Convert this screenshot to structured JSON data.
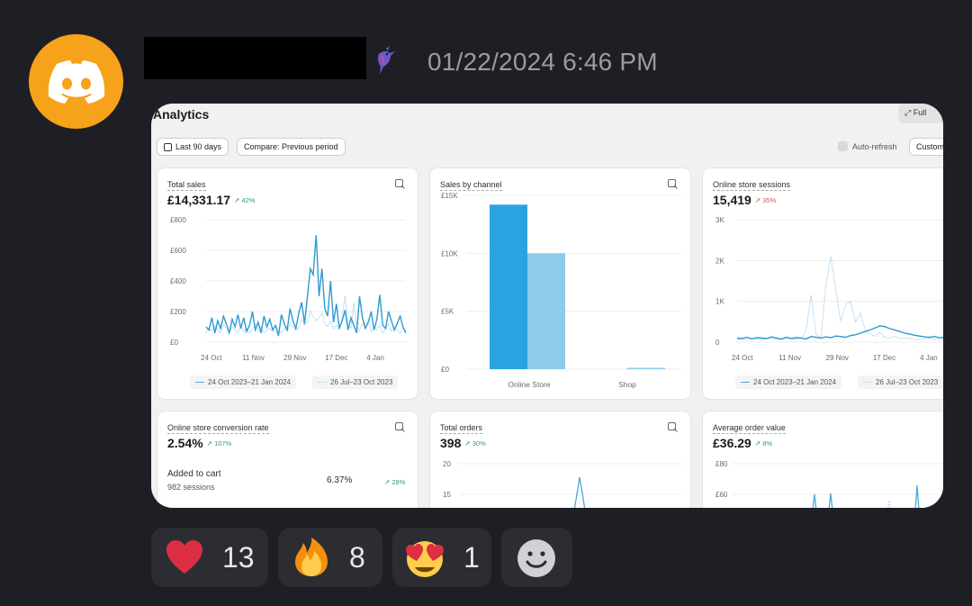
{
  "message": {
    "timestamp": "01/22/2024 6:46 PM",
    "avatar_icon": "discord-icon",
    "avatar_color": "#f7a21b"
  },
  "screenshot": {
    "title": "Analytics",
    "full_btn": "Full",
    "date_filter": "Last 90 days",
    "compare": "Compare: Previous period",
    "auto_refresh": "Auto-refresh",
    "customize": "Custom",
    "cards": {
      "total_sales": {
        "title": "Total sales",
        "value": "£14,331.17",
        "delta": "42%",
        "y_ticks": [
          "£800",
          "£600",
          "£400",
          "£200",
          "£0"
        ],
        "x_ticks": [
          "24 Oct",
          "11 Nov",
          "29 Nov",
          "17 Dec",
          "4 Jan"
        ],
        "legend_current": "24 Oct 2023–21 Jan 2024",
        "legend_previous": "26 Jul–23 Oct 2023"
      },
      "sales_by_channel": {
        "title": "Sales by channel",
        "y_ticks": [
          "£15K",
          "£10K",
          "£5K",
          "£0"
        ],
        "categories": [
          "Online Store",
          "Shop"
        ]
      },
      "sessions": {
        "title": "Online store sessions",
        "value": "15,419",
        "delta": "35%",
        "y_ticks": [
          "3K",
          "2K",
          "1K",
          "0"
        ],
        "x_ticks": [
          "24 Oct",
          "11 Nov",
          "29 Nov",
          "17 Dec",
          "4 Jan"
        ],
        "legend_current": "24 Oct 2023–21 Jan 2024",
        "legend_previous": "26 Jul–23 Oct 2023"
      },
      "conversion": {
        "title": "Online store conversion rate",
        "value": "2.54%",
        "delta": "107%",
        "row_label": "Added to cart",
        "row_sub": "982 sessions",
        "row_value": "6.37%",
        "row_delta": "28%"
      },
      "orders": {
        "title": "Total orders",
        "value": "398",
        "delta": "30%",
        "y_ticks": [
          "20",
          "15"
        ]
      },
      "aov": {
        "title": "Average order value",
        "value": "£36.29",
        "delta": "8%",
        "y_ticks": [
          "£80",
          "£60"
        ]
      }
    }
  },
  "chart_data": [
    {
      "type": "line",
      "title": "Total sales",
      "x_ticks": [
        "24 Oct",
        "11 Nov",
        "29 Nov",
        "17 Dec",
        "4 Jan"
      ],
      "ylim": [
        0,
        800
      ],
      "series": [
        {
          "name": "24 Oct 2023–21 Jan 2024",
          "values": [
            100,
            80,
            160,
            60,
            140,
            90,
            170,
            120,
            60,
            150,
            100,
            180,
            90,
            160,
            70,
            110,
            200,
            80,
            130,
            60,
            170,
            100,
            150,
            80,
            110,
            40,
            180,
            120,
            80,
            220,
            140,
            90,
            190,
            260,
            120,
            300,
            480,
            440,
            700,
            300,
            480,
            220,
            170,
            400,
            130,
            250,
            90,
            140,
            210,
            80,
            160,
            110,
            60,
            300,
            160,
            90,
            130,
            200,
            80,
            150,
            310,
            110,
            90,
            200,
            140,
            80,
            120,
            170,
            100,
            60
          ]
        },
        {
          "name": "26 Jul–23 Oct 2023",
          "values": [
            60,
            90,
            70,
            110,
            80,
            60,
            120,
            90,
            70,
            100,
            80,
            60,
            110,
            70,
            90,
            60,
            80,
            120,
            70,
            100,
            60,
            80,
            90,
            70,
            110,
            80,
            60,
            90,
            70,
            120,
            100,
            80,
            90,
            150,
            110,
            130,
            200,
            170,
            140,
            160,
            190,
            120,
            100,
            140,
            90,
            110,
            80,
            180,
            300,
            120,
            90,
            260,
            100,
            80,
            120,
            90,
            140,
            70,
            100,
            80,
            110,
            60,
            90,
            120,
            70,
            100,
            80,
            60,
            90,
            70
          ]
        }
      ]
    },
    {
      "type": "bar",
      "title": "Sales by channel",
      "categories": [
        "Online Store",
        "Shop"
      ],
      "ylim": [
        0,
        15000
      ],
      "series": [
        {
          "name": "24 Oct 2023–21 Jan 2024",
          "values": [
            14200,
            0
          ]
        },
        {
          "name": "26 Jul–23 Oct 2023",
          "values": [
            10000,
            100
          ]
        }
      ]
    },
    {
      "type": "line",
      "title": "Online store sessions",
      "x_ticks": [
        "24 Oct",
        "11 Nov",
        "29 Nov",
        "17 Dec",
        "4 Jan"
      ],
      "ylim": [
        0,
        3000
      ],
      "series": [
        {
          "name": "24 Oct 2023–21 Jan 2024",
          "values": [
            100,
            90,
            120,
            80,
            110,
            100,
            90,
            130,
            100,
            80,
            120,
            90,
            110,
            100,
            80,
            140,
            120,
            100,
            130,
            110,
            150,
            140,
            120,
            160,
            180,
            220,
            260,
            300,
            350,
            400,
            380,
            330,
            300,
            260,
            220,
            200,
            170,
            150,
            130,
            120,
            140,
            110,
            120,
            100,
            130,
            110,
            120
          ]
        },
        {
          "name": "26 Jul–23 Oct 2023",
          "values": [
            60,
            80,
            50,
            90,
            70,
            60,
            80,
            100,
            70,
            60,
            90,
            80,
            60,
            70,
            300,
            1150,
            200,
            100,
            1400,
            2100,
            1300,
            500,
            900,
            1000,
            500,
            700,
            300,
            200,
            150,
            250,
            120,
            100,
            150,
            80,
            100,
            90,
            70,
            60,
            80,
            100,
            70,
            60,
            80,
            90,
            60,
            70,
            80
          ]
        }
      ]
    }
  ]
}
